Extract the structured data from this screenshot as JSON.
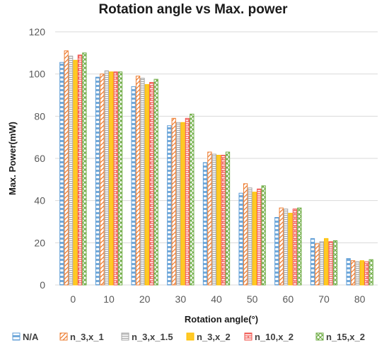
{
  "chart_data": {
    "type": "bar",
    "title": "Rotation angle vs Max. power",
    "xlabel": "Rotation angle(°)",
    "ylabel": "Max. Power(mW)",
    "categories": [
      "0",
      "10",
      "20",
      "30",
      "40",
      "50",
      "60",
      "70",
      "80"
    ],
    "ylim": [
      0,
      120
    ],
    "yticks": [
      "0",
      "20",
      "40",
      "60",
      "80",
      "100",
      "120"
    ],
    "grid": true,
    "legend": "bottom",
    "series": [
      {
        "name": "N/A",
        "color": "#5b9bd5",
        "pattern": "dashed",
        "values": [
          105.5,
          98.5,
          94,
          75.5,
          58,
          43.5,
          32,
          22,
          12.5
        ]
      },
      {
        "name": "n_3,x_1",
        "color": "#ed7d31",
        "pattern": "diagonal",
        "values": [
          111,
          100,
          99,
          79,
          63,
          48,
          36.5,
          19.5,
          11.5
        ]
      },
      {
        "name": "n_3,x_1.5",
        "color": "#a5a5a5",
        "pattern": "horizontal",
        "values": [
          108.5,
          101.5,
          98,
          77,
          62,
          46,
          36,
          20.5,
          11
        ]
      },
      {
        "name": "n_3,x_2",
        "color": "#ffc000",
        "pattern": "vertical",
        "values": [
          106.5,
          101,
          95,
          77,
          61.5,
          44,
          34,
          22,
          11.5
        ]
      },
      {
        "name": "n_10,x_2",
        "color": "#f0504a",
        "pattern": "brick",
        "values": [
          109,
          101,
          96,
          79,
          61.5,
          45.5,
          36,
          20.5,
          11
        ]
      },
      {
        "name": "n_15,x_2",
        "color": "#70ad47",
        "pattern": "cross",
        "values": [
          110,
          101,
          97.5,
          81,
          63,
          47,
          36.5,
          21,
          12
        ]
      }
    ]
  }
}
